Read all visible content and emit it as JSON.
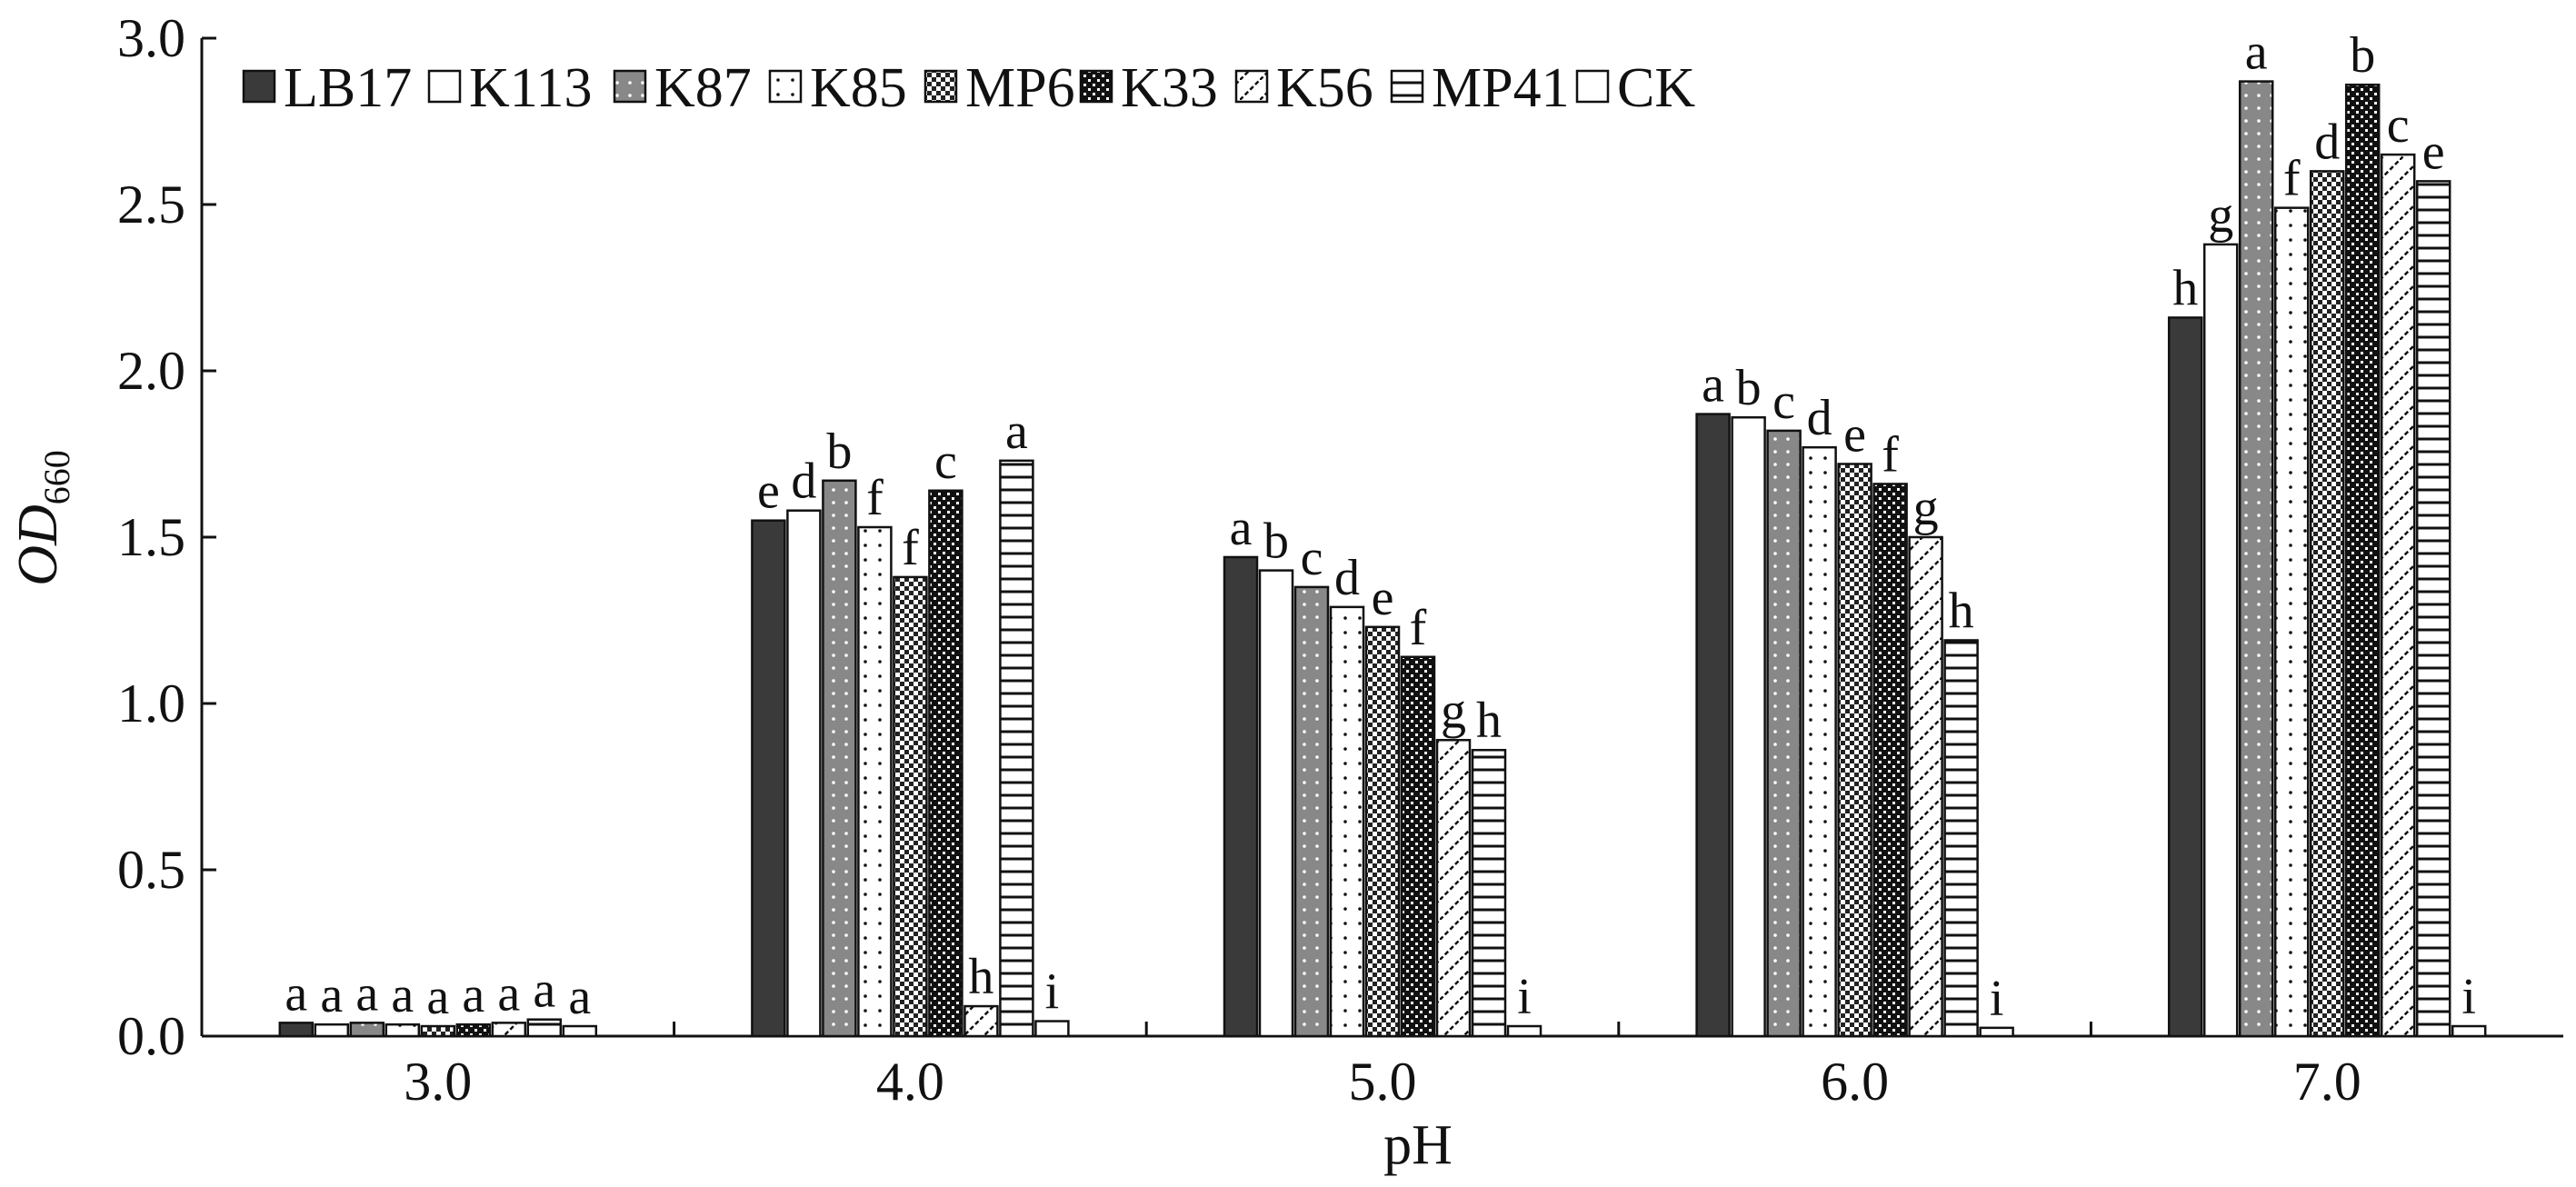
{
  "chart_data": {
    "type": "bar",
    "xlabel": "pH",
    "ylabel": {
      "main": "OD",
      "sub": "660"
    },
    "categories": [
      "3.0",
      "4.0",
      "5.0",
      "6.0",
      "7.0"
    ],
    "ylim": [
      0,
      3.0
    ],
    "yticks": [
      "0.0",
      "0.5",
      "1.0",
      "1.5",
      "2.0",
      "2.5",
      "3.0"
    ],
    "grid": false,
    "legend_position": "top",
    "series": [
      {
        "name": "LB17",
        "pattern": "solid-dark",
        "values": [
          0.04,
          1.55,
          1.44,
          1.87,
          2.16
        ],
        "letters": [
          "a",
          "e",
          "a",
          "a",
          "h"
        ]
      },
      {
        "name": "K113",
        "pattern": "white",
        "values": [
          0.035,
          1.58,
          1.4,
          1.86,
          2.38
        ],
        "letters": [
          "a",
          "d",
          "b",
          "b",
          "g"
        ]
      },
      {
        "name": "K87",
        "pattern": "gray-dots",
        "values": [
          0.04,
          1.67,
          1.35,
          1.82,
          2.87
        ],
        "letters": [
          "a",
          "b",
          "c",
          "c",
          "a"
        ]
      },
      {
        "name": "K85",
        "pattern": "sparse-dots",
        "values": [
          0.035,
          1.53,
          1.29,
          1.77,
          2.49
        ],
        "letters": [
          "a",
          "f",
          "d",
          "d",
          "f"
        ]
      },
      {
        "name": "MP6",
        "pattern": "checker-fine",
        "values": [
          0.03,
          1.38,
          1.23,
          1.72,
          2.6
        ],
        "letters": [
          "a",
          "f",
          "e",
          "e",
          "d"
        ]
      },
      {
        "name": "K33",
        "pattern": "checker-dark",
        "values": [
          0.035,
          1.64,
          1.14,
          1.66,
          2.86
        ],
        "letters": [
          "a",
          "c",
          "f",
          "f",
          "b"
        ]
      },
      {
        "name": "K56",
        "pattern": "diagonal",
        "values": [
          0.04,
          0.09,
          0.89,
          1.5,
          2.65
        ],
        "letters": [
          "a",
          "h",
          "g",
          "g",
          "c"
        ]
      },
      {
        "name": "MP41",
        "pattern": "horizontal",
        "values": [
          0.05,
          1.73,
          0.86,
          1.19,
          2.57
        ],
        "letters": [
          "a",
          "a",
          "h",
          "h",
          "e"
        ]
      },
      {
        "name": "CK",
        "pattern": "white",
        "values": [
          0.03,
          0.045,
          0.03,
          0.025,
          0.03
        ],
        "letters": [
          "a",
          "i",
          "i",
          "i",
          "i"
        ]
      }
    ],
    "colors": {
      "dark": "#3a3a3a",
      "gray": "#888888",
      "axis": "#111111"
    }
  }
}
